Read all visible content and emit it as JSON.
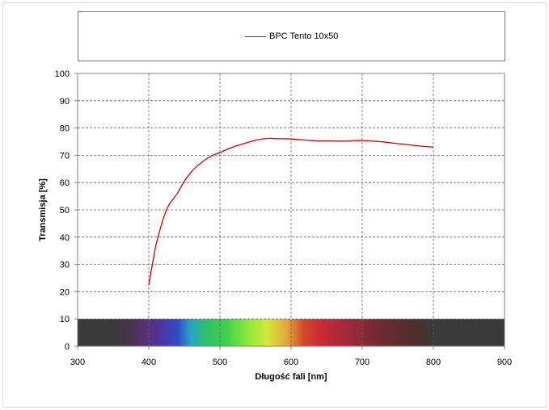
{
  "chart_data": {
    "type": "line",
    "title": "",
    "xlabel": "Długość fali [nm]",
    "ylabel": "Transmisja [%]",
    "xlim": [
      300,
      900
    ],
    "ylim": [
      0,
      100
    ],
    "x_ticks": [
      300,
      400,
      500,
      600,
      700,
      800,
      900
    ],
    "y_ticks": [
      0,
      10,
      20,
      30,
      40,
      50,
      60,
      70,
      80,
      90,
      100
    ],
    "grid": true,
    "legend_position": "top",
    "spectrum_band": {
      "y_range": [
        0,
        10
      ],
      "x_range": [
        300,
        900
      ]
    },
    "series": [
      {
        "name": "BPC Tento 10x50",
        "color": "#d40000",
        "x": [
          400,
          405,
          410,
          415,
          420,
          425,
          430,
          440,
          450,
          460,
          470,
          480,
          490,
          500,
          510,
          520,
          530,
          540,
          550,
          560,
          570,
          580,
          590,
          600,
          610,
          620,
          630,
          640,
          650,
          660,
          670,
          680,
          690,
          700,
          710,
          720,
          730,
          740,
          750,
          760,
          770,
          780,
          790,
          800
        ],
        "y": [
          22.5,
          30,
          37,
          42,
          46.5,
          50,
          52.5,
          56,
          60.5,
          64,
          66.5,
          68.5,
          70,
          71,
          72.2,
          73.2,
          74,
          74.8,
          75.5,
          76,
          76.2,
          76.1,
          76.1,
          76,
          75.8,
          75.6,
          75.4,
          75.2,
          75.3,
          75.2,
          75.2,
          75.2,
          75.4,
          75.4,
          75.3,
          75.1,
          74.9,
          74.6,
          74.3,
          74,
          73.7,
          73.4,
          73.2,
          73
        ]
      }
    ]
  }
}
